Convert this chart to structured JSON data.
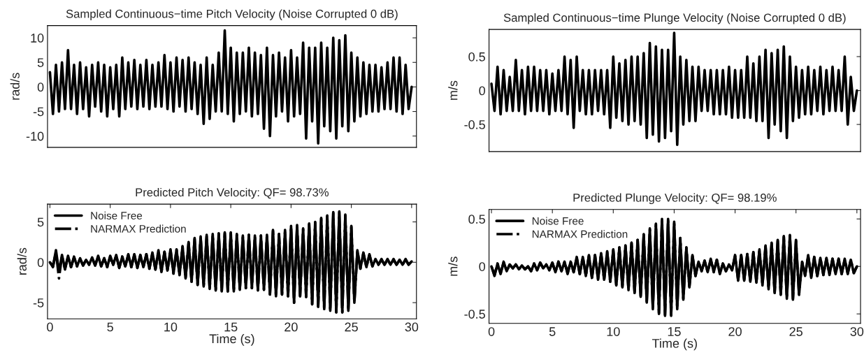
{
  "chart_data": [
    {
      "type": "line",
      "title": "Sampled Continuous−time Pitch Velocity (Noise Corrupted 0 dB)",
      "ylabel": "rad/s",
      "xlim": [
        -0.2,
        30.4
      ],
      "ylim": [
        -12.3,
        12.5
      ],
      "yticks": [
        -10,
        -5,
        0,
        5,
        10
      ],
      "tick_labels": "y",
      "grid": false,
      "legend": false,
      "x": [
        0,
        0.25,
        0.5,
        0.75,
        1,
        1.25,
        1.5,
        1.75,
        2,
        2.25,
        2.5,
        2.75,
        3,
        3.25,
        3.5,
        3.75,
        4,
        4.25,
        4.5,
        4.75,
        5,
        5.25,
        5.5,
        5.75,
        6,
        6.25,
        6.5,
        6.75,
        7,
        7.25,
        7.5,
        7.75,
        8,
        8.25,
        8.5,
        8.75,
        9,
        9.25,
        9.5,
        9.75,
        10,
        10.25,
        10.5,
        10.75,
        11,
        11.25,
        11.5,
        11.75,
        12,
        12.25,
        12.5,
        12.75,
        13,
        13.25,
        13.5,
        13.75,
        14,
        14.25,
        14.5,
        14.75,
        15,
        15.25,
        15.5,
        15.75,
        16,
        16.25,
        16.5,
        16.75,
        17,
        17.25,
        17.5,
        17.75,
        18,
        18.25,
        18.5,
        18.75,
        19,
        19.25,
        19.5,
        19.75,
        20,
        20.25,
        20.5,
        20.75,
        21,
        21.25,
        21.5,
        21.75,
        22,
        22.25,
        22.5,
        22.75,
        23,
        23.25,
        23.5,
        23.75,
        24,
        24.25,
        24.5,
        24.75,
        25,
        25.25,
        25.5,
        25.75,
        26,
        26.25,
        26.5,
        26.75,
        27,
        27.25,
        27.5,
        27.75,
        28,
        28.25,
        28.5,
        28.75,
        29,
        29.25,
        29.5,
        29.75,
        30
      ],
      "series": [
        {
          "color": "#000000",
          "line_style": "solid",
          "values": [
            3,
            -5.5,
            4.5,
            -5,
            5,
            -4.5,
            7.5,
            -4.5,
            4.5,
            -5.5,
            5,
            -4.5,
            4,
            -6,
            4.5,
            -4,
            5,
            -5,
            4.5,
            -6,
            4,
            -4.5,
            4.5,
            -6,
            6,
            -4.5,
            5,
            -4,
            5.5,
            -4.5,
            4.5,
            -4,
            5.5,
            -4.5,
            4.5,
            -4,
            5,
            -4,
            6.5,
            -4.5,
            5,
            -5,
            6,
            -4,
            5.5,
            -5,
            6,
            -4.5,
            5,
            -5.5,
            4.5,
            -7.5,
            6,
            -6.5,
            4.5,
            -5,
            7,
            -5,
            11.5,
            -5.5,
            8,
            -7,
            7,
            -5.5,
            7,
            -5,
            8,
            -6,
            7,
            -5.5,
            6.5,
            -8.5,
            8,
            -10,
            6.5,
            -6,
            7,
            -5,
            6,
            -7,
            7.5,
            -6,
            6,
            -5.5,
            9,
            -10.5,
            8,
            -7,
            8,
            -11.5,
            9,
            -8,
            8,
            -9,
            10,
            -10.5,
            9.5,
            -8,
            10.5,
            -9,
            7,
            -7,
            6,
            -6,
            5,
            -5.5,
            4.5,
            -5,
            4.5,
            -5,
            4,
            -4.5,
            5,
            -4.5,
            6,
            -5,
            6,
            -5.5,
            4.5,
            -4.5,
            0
          ]
        }
      ]
    },
    {
      "type": "line",
      "title": "Sampled Continuous−time Plunge Velocity (Noise Corrupted 0 dB)",
      "ylabel": "m/s",
      "xlim": [
        -0.2,
        30.3
      ],
      "ylim": [
        -0.9,
        0.9
      ],
      "yticks": [
        -0.5,
        0,
        0.5
      ],
      "tick_labels": "y",
      "grid": false,
      "legend": false,
      "x": [
        0,
        0.25,
        0.5,
        0.75,
        1,
        1.25,
        1.5,
        1.75,
        2,
        2.25,
        2.5,
        2.75,
        3,
        3.25,
        3.5,
        3.75,
        4,
        4.25,
        4.5,
        4.75,
        5,
        5.25,
        5.5,
        5.75,
        6,
        6.25,
        6.5,
        6.75,
        7,
        7.25,
        7.5,
        7.75,
        8,
        8.25,
        8.5,
        8.75,
        9,
        9.25,
        9.5,
        9.75,
        10,
        10.25,
        10.5,
        10.75,
        11,
        11.25,
        11.5,
        11.75,
        12,
        12.25,
        12.5,
        12.75,
        13,
        13.25,
        13.5,
        13.75,
        14,
        14.25,
        14.5,
        14.75,
        15,
        15.25,
        15.5,
        15.75,
        16,
        16.25,
        16.5,
        16.75,
        17,
        17.25,
        17.5,
        17.75,
        18,
        18.25,
        18.5,
        18.75,
        19,
        19.25,
        19.5,
        19.75,
        20,
        20.25,
        20.5,
        20.75,
        21,
        21.25,
        21.5,
        21.75,
        22,
        22.25,
        22.5,
        22.75,
        23,
        23.25,
        23.5,
        23.75,
        24,
        24.25,
        24.5,
        24.75,
        25,
        25.25,
        25.5,
        25.75,
        26,
        26.25,
        26.5,
        26.75,
        27,
        27.25,
        27.5,
        27.75,
        28,
        28.25,
        28.5,
        28.75,
        29,
        29.25,
        29.5,
        29.75,
        30
      ],
      "series": [
        {
          "color": "#000000",
          "line_style": "solid",
          "values": [
            0.1,
            -0.3,
            0.35,
            -0.35,
            0.3,
            -0.3,
            0.2,
            -0.3,
            0.45,
            -0.3,
            0.3,
            -0.35,
            0.35,
            -0.3,
            0.35,
            -0.3,
            0.3,
            -0.3,
            0.3,
            -0.35,
            0.25,
            -0.3,
            0.3,
            -0.3,
            0.5,
            -0.35,
            0.45,
            -0.55,
            0.5,
            -0.3,
            0.3,
            -0.35,
            0.3,
            -0.35,
            0.3,
            -0.3,
            0.3,
            -0.35,
            0.3,
            -0.55,
            0.5,
            -0.4,
            0.4,
            -0.45,
            0.45,
            -0.5,
            0.5,
            -0.45,
            0.5,
            -0.5,
            0.55,
            -0.7,
            0.7,
            -0.65,
            0.65,
            -0.75,
            0.6,
            -0.7,
            0.6,
            -0.6,
            0.85,
            -0.8,
            0.5,
            -0.5,
            0.45,
            -0.45,
            0.35,
            -0.45,
            0.35,
            -0.3,
            0.3,
            -0.3,
            0.3,
            -0.35,
            0.3,
            -0.35,
            0.3,
            -0.35,
            0.35,
            -0.4,
            0.3,
            -0.4,
            0.3,
            -0.4,
            0.5,
            -0.4,
            0.4,
            -0.45,
            0.5,
            -0.45,
            0.6,
            -0.7,
            0.55,
            -0.5,
            0.6,
            -0.6,
            0.65,
            -0.7,
            0.5,
            -0.45,
            0.35,
            -0.4,
            0.3,
            -0.35,
            0.35,
            -0.35,
            0.3,
            -0.3,
            0.35,
            -0.35,
            0.3,
            -0.3,
            0.35,
            -0.3,
            0.3,
            -0.3,
            0.5,
            -0.5,
            0.2,
            -0.3,
            0
          ]
        }
      ]
    },
    {
      "type": "line",
      "title": "Predicted Pitch Velocity: QF= 98.73%",
      "xlabel": "Time (s)",
      "ylabel": "rad/s",
      "xlim": [
        -0.2,
        30.4
      ],
      "ylim": [
        -7,
        7.2
      ],
      "xticks": [
        0,
        5,
        10,
        15,
        20,
        25,
        30
      ],
      "yticks": [
        -5,
        0,
        5
      ],
      "grid": false,
      "legend": "top left",
      "x": [
        0,
        0.25,
        0.5,
        0.75,
        1,
        1.25,
        1.5,
        1.75,
        2,
        2.25,
        2.5,
        2.75,
        3,
        3.25,
        3.5,
        3.75,
        4,
        4.25,
        4.5,
        4.75,
        5,
        5.25,
        5.5,
        5.75,
        6,
        6.25,
        6.5,
        6.75,
        7,
        7.25,
        7.5,
        7.75,
        8,
        8.25,
        8.5,
        8.75,
        9,
        9.25,
        9.5,
        9.75,
        10,
        10.25,
        10.5,
        10.75,
        11,
        11.25,
        11.5,
        11.75,
        12,
        12.25,
        12.5,
        12.75,
        13,
        13.25,
        13.5,
        13.75,
        14,
        14.25,
        14.5,
        14.75,
        15,
        15.25,
        15.5,
        15.75,
        16,
        16.25,
        16.5,
        16.75,
        17,
        17.25,
        17.5,
        17.75,
        18,
        18.25,
        18.5,
        18.75,
        19,
        19.25,
        19.5,
        19.75,
        20,
        20.25,
        20.5,
        20.75,
        21,
        21.25,
        21.5,
        21.75,
        22,
        22.25,
        22.5,
        22.75,
        23,
        23.25,
        23.5,
        23.75,
        24,
        24.25,
        24.5,
        24.75,
        25,
        25.25,
        25.5,
        25.75,
        26,
        26.25,
        26.5,
        26.75,
        27,
        27.25,
        27.5,
        27.75,
        28,
        28.25,
        28.5,
        28.75,
        29,
        29.25,
        29.5,
        29.75,
        30
      ],
      "series": [
        {
          "name": "Noise Free",
          "color": "#000000",
          "line_style": "solid",
          "values": [
            0,
            -0.5,
            1.5,
            -1.2,
            0.9,
            -0.8,
            0.8,
            -0.6,
            0.7,
            -0.5,
            0.5,
            -0.4,
            0.3,
            -0.3,
            0.6,
            -0.4,
            0.8,
            -0.5,
            0.5,
            -0.6,
            0.8,
            -0.3,
            0.9,
            -0.7,
            0.7,
            -0.5,
            1,
            -0.6,
            1,
            -0.7,
            0.9,
            -0.6,
            1,
            -0.8,
            1.2,
            -0.9,
            1.5,
            -1.2,
            1.3,
            -1,
            1.6,
            -1.4,
            1.6,
            -1.6,
            2,
            -2,
            2.5,
            -2.4,
            3,
            -2.8,
            3.2,
            -3,
            3.4,
            -3.3,
            3.5,
            -3.5,
            3.6,
            -3.6,
            3.7,
            -3.6,
            3.7,
            -3.6,
            3.5,
            -3.4,
            3.3,
            -3.2,
            3.4,
            -3.2,
            3.3,
            -3.5,
            3.3,
            -3.4,
            3.4,
            -4,
            4,
            -4.2,
            3.5,
            -4,
            4,
            -4.2,
            4.5,
            -5,
            4.6,
            -4.2,
            4.2,
            -4.3,
            4.8,
            -5.2,
            5,
            -5.5,
            5.5,
            -5.8,
            5.8,
            -6,
            6.2,
            -6.2,
            6.3,
            -6.2,
            5.9,
            -6,
            4.5,
            -5,
            1.5,
            -0.8,
            1.2,
            -0.6,
            1,
            -0.5,
            0.4,
            -0.3,
            0.4,
            -0.3,
            0.4,
            -0.3,
            0.4,
            -0.3,
            0.3,
            -0.3,
            0.4,
            -0.3,
            0.1
          ]
        },
        {
          "name": "NARMAX Prediction",
          "color": "#000000",
          "line_style": "dashdot",
          "values": [
            0,
            -0.6,
            1.3,
            -2,
            0.8,
            -0.9,
            0.7,
            -0.6,
            0.6,
            -0.5,
            0.4,
            -0.4,
            0.3,
            -0.3,
            0.5,
            -0.4,
            0.7,
            -0.5,
            0.5,
            -0.6,
            0.7,
            -0.3,
            0.8,
            -0.7,
            0.7,
            -0.5,
            0.9,
            -0.6,
            0.9,
            -0.7,
            0.9,
            -0.6,
            1,
            -0.8,
            1.1,
            -0.9,
            1.4,
            -1.2,
            1.3,
            -1,
            1.5,
            -1.4,
            1.6,
            -1.6,
            1.9,
            -2,
            2.4,
            -2.4,
            2.9,
            -2.8,
            3.1,
            -3,
            3.3,
            -3.3,
            3.4,
            -3.5,
            3.5,
            -3.6,
            3.6,
            -3.6,
            3.6,
            -3.6,
            3.4,
            -3.4,
            3.2,
            -3.2,
            3.4,
            -3.2,
            3.2,
            -3.5,
            3.3,
            -3.4,
            3.3,
            -4,
            3.9,
            -4.2,
            3.5,
            -4,
            3.9,
            -4.2,
            4.4,
            -5,
            4.5,
            -4.2,
            4.1,
            -4.3,
            4.7,
            -5.2,
            4.9,
            -5.5,
            5.4,
            -5.8,
            5.7,
            -6,
            6.1,
            -6.2,
            6.2,
            -6.2,
            5.8,
            -6,
            4.4,
            -5,
            1.4,
            -0.8,
            1.1,
            -0.6,
            0.9,
            -0.5,
            0.3,
            -0.3,
            0.3,
            -0.3,
            0.3,
            -0.3,
            0.3,
            -0.3,
            0.3,
            -0.3,
            0.3,
            -0.3,
            0.1
          ]
        }
      ]
    },
    {
      "type": "line",
      "title": "Predicted Plunge Velocity: QF= 98.19%",
      "xlabel": "Time (s)",
      "ylabel": "m/s",
      "xlim": [
        -0.2,
        30.3
      ],
      "ylim": [
        -0.6,
        0.6
      ],
      "xticks": [
        0,
        5,
        10,
        15,
        20,
        25,
        30
      ],
      "yticks": [
        -0.5,
        0,
        0.5
      ],
      "grid": false,
      "legend": "top left",
      "x": [
        0,
        0.25,
        0.5,
        0.75,
        1,
        1.25,
        1.5,
        1.75,
        2,
        2.25,
        2.5,
        2.75,
        3,
        3.25,
        3.5,
        3.75,
        4,
        4.25,
        4.5,
        4.75,
        5,
        5.25,
        5.5,
        5.75,
        6,
        6.25,
        6.5,
        6.75,
        7,
        7.25,
        7.5,
        7.75,
        8,
        8.25,
        8.5,
        8.75,
        9,
        9.25,
        9.5,
        9.75,
        10,
        10.25,
        10.5,
        10.75,
        11,
        11.25,
        11.5,
        11.75,
        12,
        12.25,
        12.5,
        12.75,
        13,
        13.25,
        13.5,
        13.75,
        14,
        14.25,
        14.5,
        14.75,
        15,
        15.25,
        15.5,
        15.75,
        16,
        16.25,
        16.5,
        16.75,
        17,
        17.25,
        17.5,
        17.75,
        18,
        18.25,
        18.5,
        18.75,
        19,
        19.25,
        19.5,
        19.75,
        20,
        20.25,
        20.5,
        20.75,
        21,
        21.25,
        21.5,
        21.75,
        22,
        22.25,
        22.5,
        22.75,
        23,
        23.25,
        23.5,
        23.75,
        24,
        24.25,
        24.5,
        24.75,
        25,
        25.25,
        25.5,
        25.75,
        26,
        26.25,
        26.5,
        26.75,
        27,
        27.25,
        27.5,
        27.75,
        28,
        28.25,
        28.5,
        28.75,
        29,
        29.25,
        29.5,
        29.75,
        30
      ],
      "series": [
        {
          "name": "Noise Free",
          "color": "#000000",
          "line_style": "solid",
          "values": [
            0,
            -0.1,
            0.03,
            -0.08,
            0.05,
            -0.05,
            0.02,
            -0.02,
            0.02,
            -0.03,
            0.01,
            -0.03,
            0,
            -0.05,
            0.03,
            -0.04,
            0.04,
            -0.02,
            0.02,
            -0.04,
            0.04,
            -0.06,
            0.05,
            -0.05,
            0.05,
            -0.08,
            0.05,
            -0.06,
            0.1,
            -0.08,
            0.1,
            -0.1,
            0.12,
            -0.12,
            0.12,
            -0.14,
            0.14,
            -0.14,
            0.16,
            -0.16,
            0.18,
            -0.2,
            0.2,
            -0.22,
            0.22,
            -0.25,
            0.25,
            -0.28,
            0.28,
            -0.32,
            0.34,
            -0.38,
            0.4,
            -0.45,
            0.45,
            -0.5,
            0.5,
            -0.52,
            0.5,
            -0.52,
            0.47,
            -0.45,
            0.3,
            -0.35,
            0.2,
            -0.22,
            0.12,
            -0.1,
            0.05,
            -0.05,
            0.06,
            -0.06,
            0.08,
            -0.06,
            0.07,
            -0.08,
            0.03,
            -0.05,
            0.02,
            -0.04,
            0.12,
            -0.15,
            0.12,
            -0.15,
            0.13,
            -0.16,
            0.15,
            -0.17,
            0.18,
            -0.2,
            0.22,
            -0.24,
            0.25,
            -0.28,
            0.28,
            -0.3,
            0.32,
            -0.34,
            0.33,
            -0.35,
            0.28,
            -0.3,
            0.05,
            -0.1,
            0.12,
            -0.12,
            0.1,
            -0.1,
            0.09,
            -0.09,
            0.09,
            -0.09,
            0.08,
            -0.08,
            0.08,
            -0.08,
            0.08,
            -0.08,
            0.07,
            -0.07,
            0
          ]
        },
        {
          "name": "NARMAX Prediction",
          "color": "#000000",
          "line_style": "dashdot",
          "values": [
            0,
            -0.09,
            0.03,
            -0.07,
            0.04,
            -0.05,
            0.02,
            -0.02,
            0.02,
            -0.03,
            0.01,
            -0.03,
            0,
            -0.05,
            0.03,
            -0.04,
            0.04,
            -0.02,
            0.02,
            -0.04,
            0.04,
            -0.06,
            0.05,
            -0.05,
            0.05,
            -0.07,
            0.05,
            -0.06,
            0.09,
            -0.08,
            0.1,
            -0.1,
            0.11,
            -0.12,
            0.12,
            -0.13,
            0.14,
            -0.14,
            0.15,
            -0.16,
            0.17,
            -0.2,
            0.2,
            -0.21,
            0.22,
            -0.24,
            0.25,
            -0.27,
            0.28,
            -0.31,
            0.33,
            -0.37,
            0.39,
            -0.44,
            0.44,
            -0.49,
            0.49,
            -0.51,
            0.49,
            -0.51,
            0.46,
            -0.44,
            0.3,
            -0.34,
            0.2,
            -0.21,
            0.11,
            -0.1,
            0.05,
            -0.05,
            0.06,
            -0.06,
            0.07,
            -0.06,
            0.07,
            -0.07,
            0.03,
            -0.05,
            0.02,
            -0.04,
            0.11,
            -0.14,
            0.12,
            -0.14,
            0.13,
            -0.15,
            0.15,
            -0.16,
            0.17,
            -0.19,
            0.21,
            -0.23,
            0.24,
            -0.27,
            0.27,
            -0.29,
            0.31,
            -0.33,
            0.32,
            -0.34,
            0.27,
            -0.29,
            0.05,
            -0.09,
            0.11,
            -0.11,
            0.1,
            -0.1,
            0.09,
            -0.09,
            0.08,
            -0.08,
            0.08,
            -0.08,
            0.08,
            -0.08,
            0.07,
            -0.07,
            0.07,
            -0.07,
            0
          ]
        }
      ]
    }
  ]
}
